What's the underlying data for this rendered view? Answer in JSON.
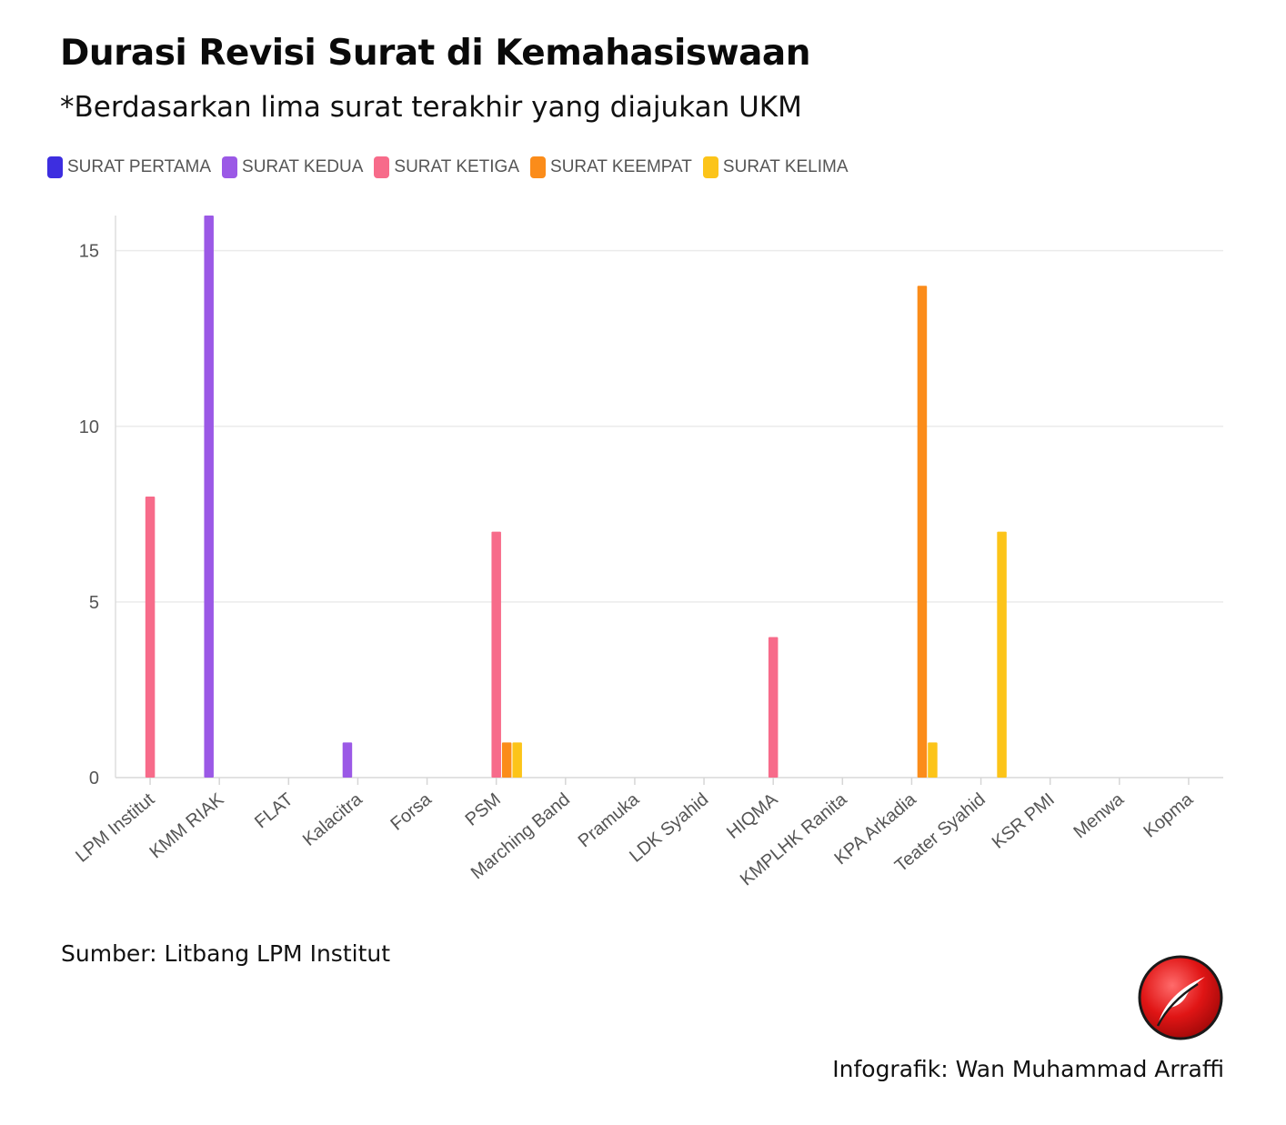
{
  "title": "Durasi Revisi Surat di Kemahasiswaan",
  "subtitle": "*Berdasarkan lima surat terakhir yang diajukan UKM",
  "source": "Sumber: Litbang LPM Institut",
  "credit": "Infografik: Wan Muhammad Arraffi",
  "chart_data": {
    "type": "bar",
    "categories": [
      "LPM Institut",
      "KMM RIAK",
      "FLAT",
      "Kalacitra",
      "Forsa",
      "PSM",
      "Marching Band",
      "Pramuka",
      "LDK Syahid",
      "HIQMA",
      "KMPLHK Ranita",
      "KPA Arkadia",
      "Teater Syahid",
      "KSR PMI",
      "Menwa",
      "Kopma"
    ],
    "series": [
      {
        "name": "SURAT PERTAMA",
        "color": "#3d2ee0",
        "values": [
          0,
          0,
          0,
          0,
          0,
          0,
          0,
          0,
          0,
          0,
          0,
          0,
          0,
          0,
          0,
          0
        ]
      },
      {
        "name": "SURAT KEDUA",
        "color": "#9b59e6",
        "values": [
          0,
          16,
          0,
          1,
          0,
          0,
          0,
          0,
          0,
          0,
          0,
          0,
          0,
          0,
          0,
          0
        ]
      },
      {
        "name": "SURAT KETIGA",
        "color": "#f76b8a",
        "values": [
          8,
          0,
          0,
          0,
          0,
          7,
          0,
          0,
          0,
          4,
          0,
          0,
          0,
          0,
          0,
          0
        ]
      },
      {
        "name": "SURAT KEEMPAT",
        "color": "#fb8c1a",
        "values": [
          0,
          0,
          0,
          0,
          0,
          1,
          0,
          0,
          0,
          0,
          0,
          14,
          0,
          0,
          0,
          0
        ]
      },
      {
        "name": "SURAT KELIMA",
        "color": "#fcc419",
        "values": [
          0,
          0,
          0,
          0,
          0,
          1,
          0,
          0,
          0,
          0,
          0,
          1,
          7,
          0,
          0,
          0
        ]
      }
    ],
    "yticks": [
      0,
      5,
      10,
      15
    ],
    "ylim": [
      0,
      16
    ],
    "xlabel": "",
    "ylabel": "",
    "grid": true,
    "legend_position": "top-left"
  }
}
